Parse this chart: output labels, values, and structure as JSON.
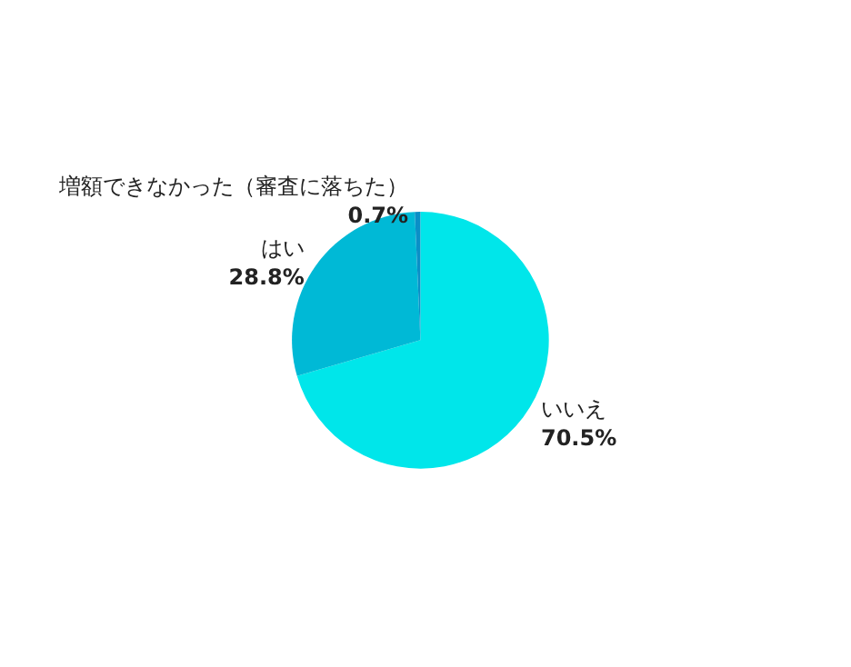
{
  "chart_data": {
    "type": "pie",
    "categories": [
      "いいえ",
      "はい",
      "増額できなかった（審査に落ちた）"
    ],
    "values": [
      70.5,
      28.8,
      0.7
    ],
    "colors": [
      "#00e6ea",
      "#00b9d6",
      "#0a8fc7"
    ],
    "value_labels": [
      "70.5%",
      "28.8%",
      "0.7%"
    ],
    "legend": false
  }
}
